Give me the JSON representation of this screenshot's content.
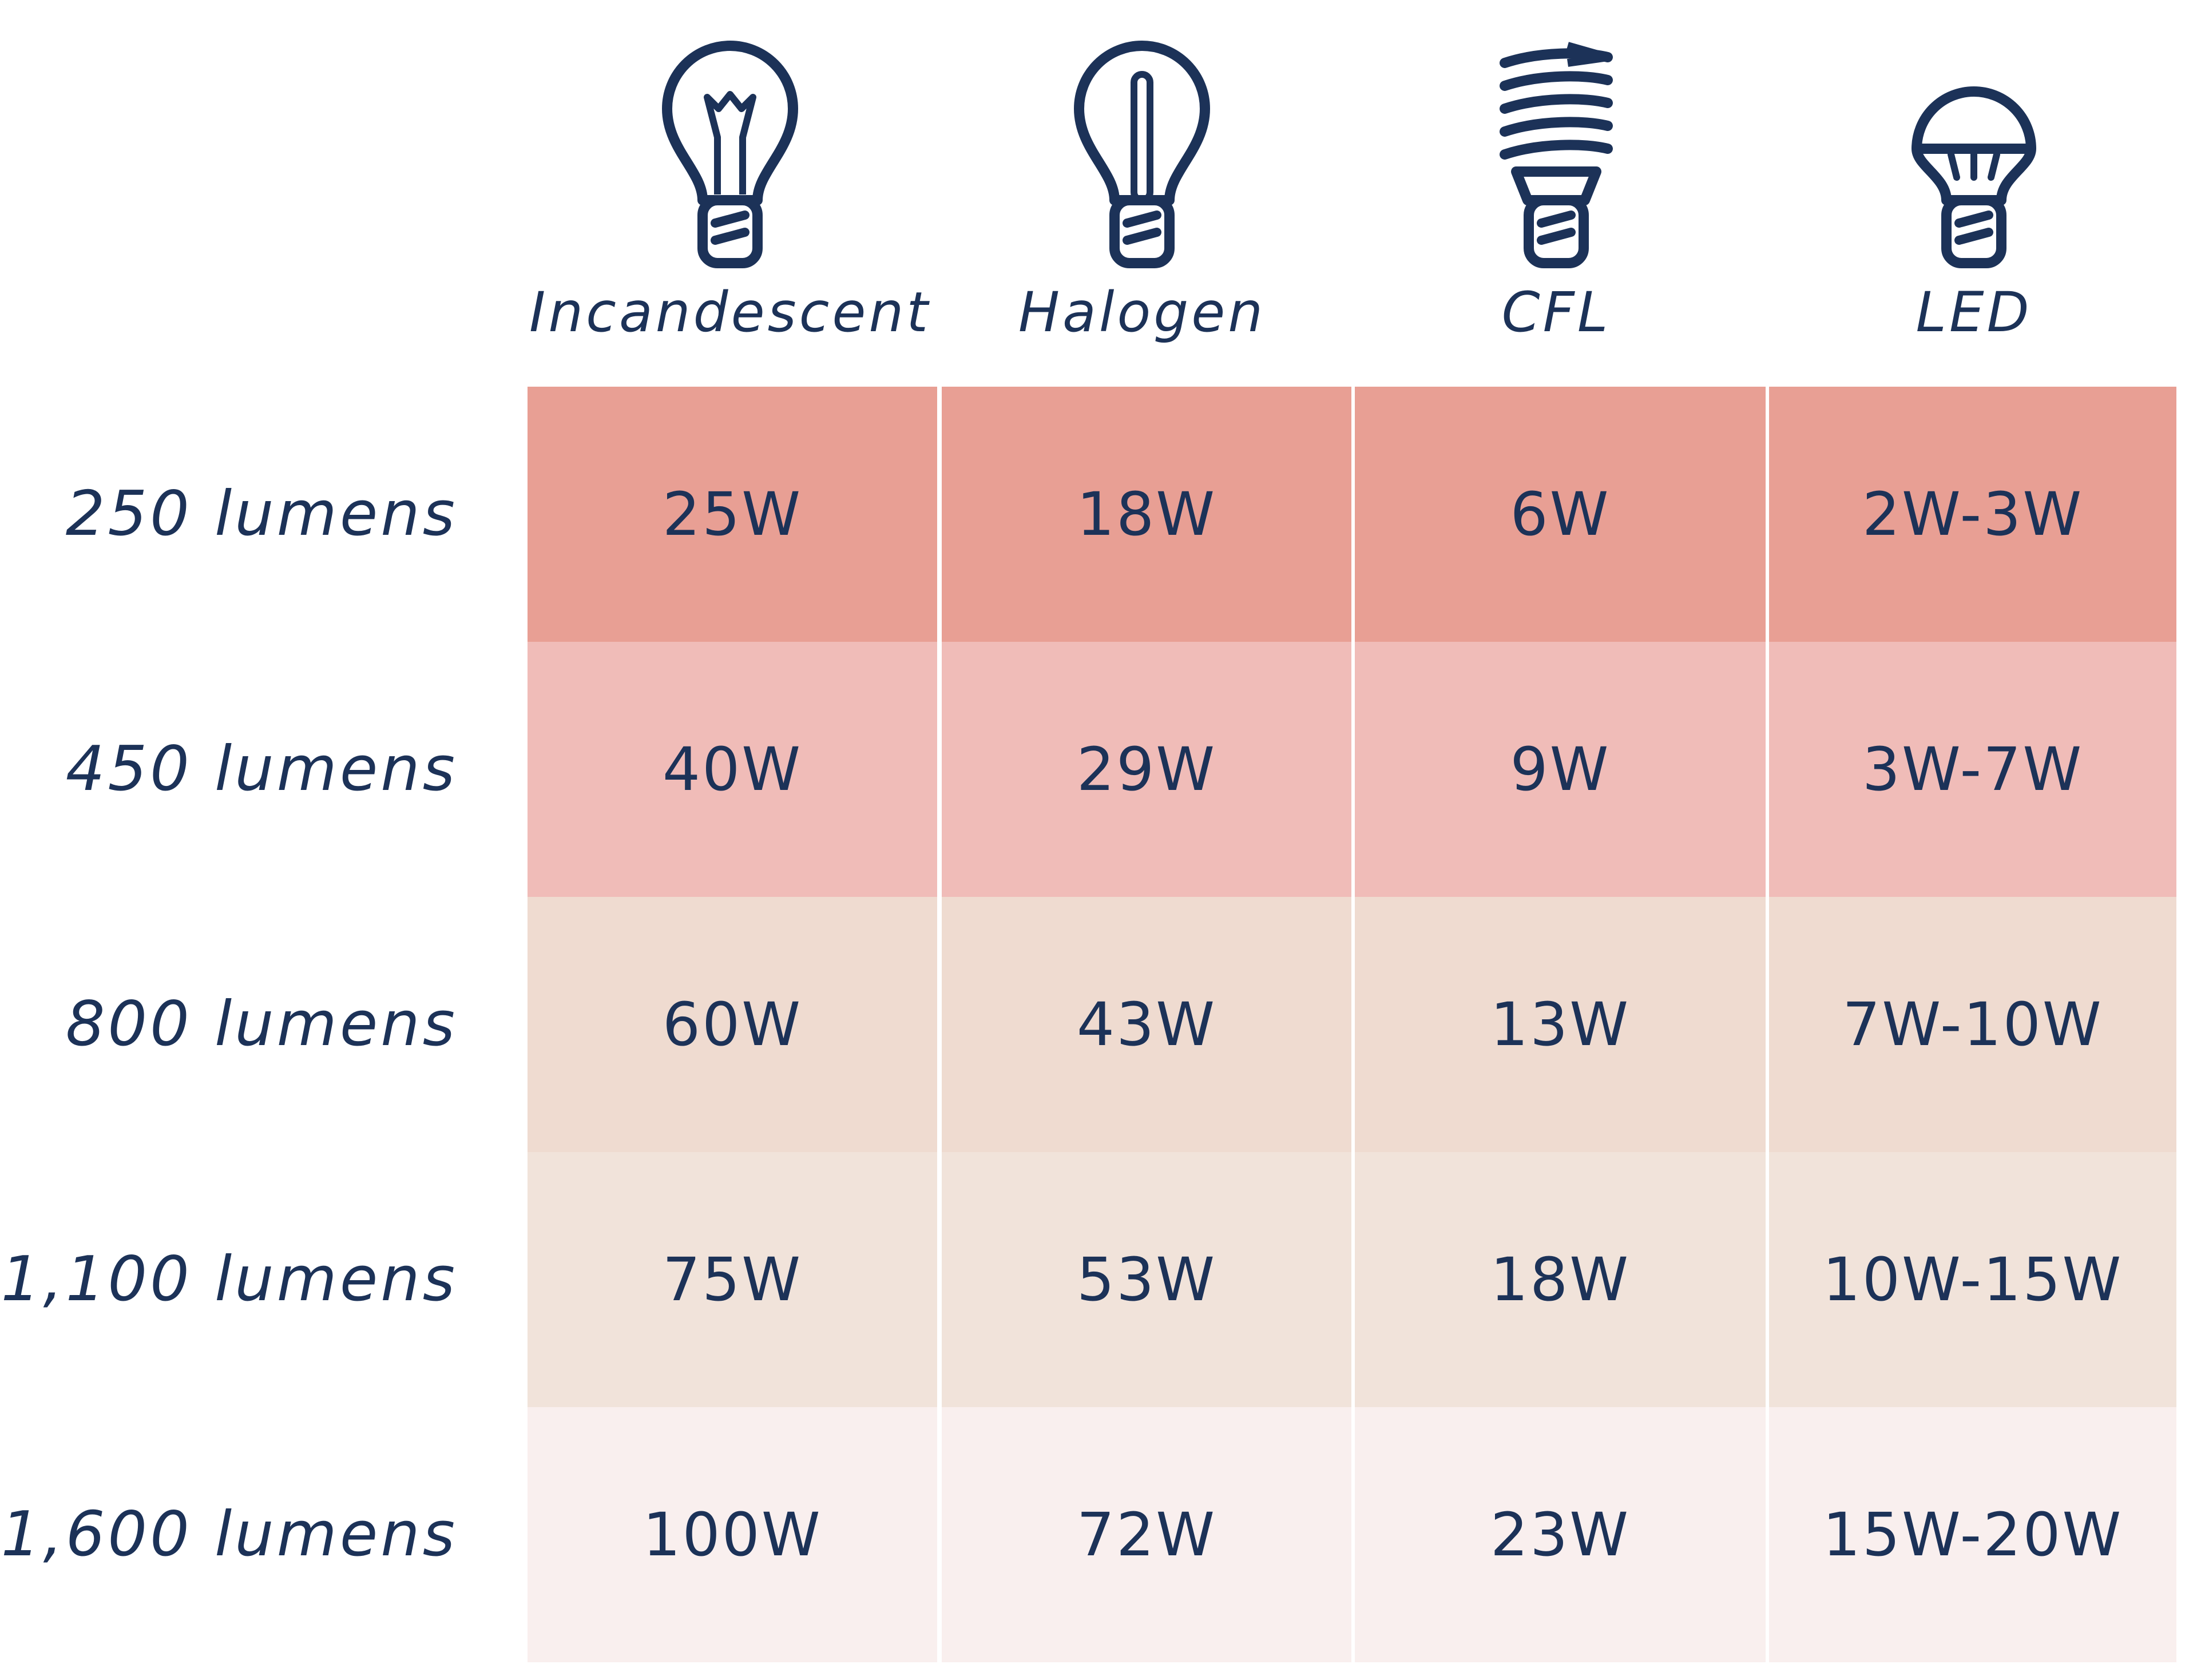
{
  "chart_data": {
    "type": "table",
    "columns": [
      "Incandescent",
      "Halogen",
      "CFL",
      "LED"
    ],
    "rows": [
      "250 lumens",
      "450 lumens",
      "800 lumens",
      "1,100 lumens",
      "1,600 lumens"
    ],
    "cells": [
      [
        "25W",
        "18W",
        "6W",
        "2W-3W"
      ],
      [
        "40W",
        "29W",
        "9W",
        "3W-7W"
      ],
      [
        "60W",
        "43W",
        "13W",
        "7W-10W"
      ],
      [
        "75W",
        "53W",
        "18W",
        "10W-15W"
      ],
      [
        "100W",
        "72W",
        "23W",
        "15W-20W"
      ]
    ],
    "row_colors": [
      "#e89f94",
      "#f0bcb8",
      "#efdbd0",
      "#f1e3da",
      "#f9efee"
    ],
    "text_color": "#1c3258",
    "icons": [
      "incandescent-bulb-icon",
      "halogen-bulb-icon",
      "cfl-bulb-icon",
      "led-bulb-icon"
    ]
  }
}
